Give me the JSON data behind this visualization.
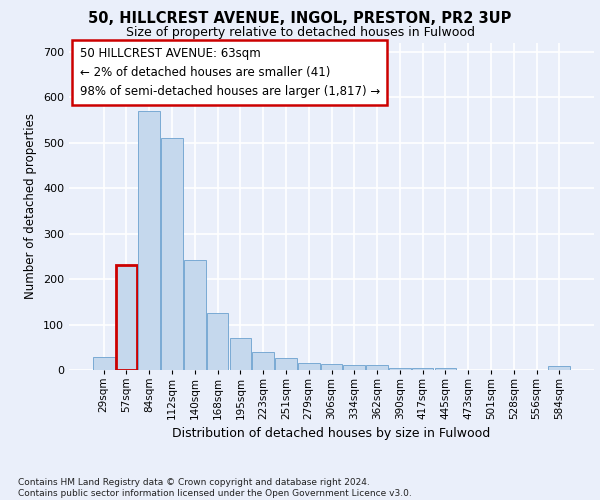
{
  "title_line1": "50, HILLCREST AVENUE, INGOL, PRESTON, PR2 3UP",
  "title_line2": "Size of property relative to detached houses in Fulwood",
  "xlabel": "Distribution of detached houses by size in Fulwood",
  "ylabel": "Number of detached properties",
  "bar_labels": [
    "29sqm",
    "57sqm",
    "84sqm",
    "112sqm",
    "140sqm",
    "168sqm",
    "195sqm",
    "223sqm",
    "251sqm",
    "279sqm",
    "306sqm",
    "334sqm",
    "362sqm",
    "390sqm",
    "417sqm",
    "445sqm",
    "473sqm",
    "501sqm",
    "528sqm",
    "556sqm",
    "584sqm"
  ],
  "bar_values": [
    28,
    230,
    570,
    510,
    242,
    126,
    70,
    40,
    26,
    15,
    14,
    10,
    10,
    5,
    5,
    5,
    0,
    0,
    0,
    0,
    8
  ],
  "highlight_bar_index": 1,
  "bar_color": "#c5d8ed",
  "bar_edge_color": "#7aaad4",
  "highlight_edge_color": "#cc0000",
  "annotation_text": "50 HILLCREST AVENUE: 63sqm\n← 2% of detached houses are smaller (41)\n98% of semi-detached houses are larger (1,817) →",
  "ylim": [
    0,
    720
  ],
  "yticks": [
    0,
    100,
    200,
    300,
    400,
    500,
    600,
    700
  ],
  "footnote": "Contains HM Land Registry data © Crown copyright and database right 2024.\nContains public sector information licensed under the Open Government Licence v3.0.",
  "bg_color": "#eaeffa",
  "grid_color": "#ffffff"
}
